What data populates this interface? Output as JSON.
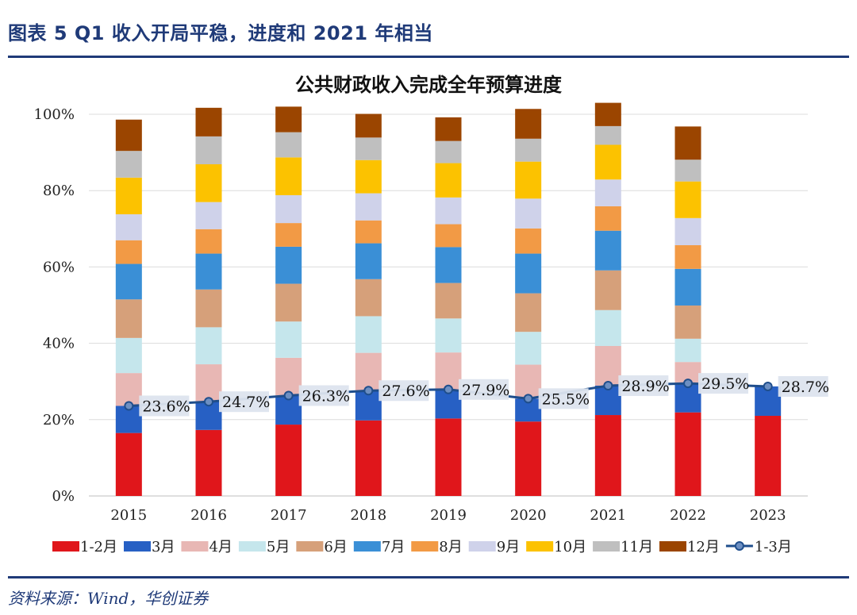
{
  "figure_title": "图表 5   Q1 收入开局平稳，进度和 2021 年相当",
  "source": "资料来源：Wind，华创证券",
  "chart_data": {
    "type": "bar",
    "stacked": true,
    "title": "公共财政收入完成全年预算进度",
    "xlabel": "",
    "ylabel": "",
    "ylim": [
      0,
      100
    ],
    "yticks": [
      "0%",
      "20%",
      "40%",
      "60%",
      "80%",
      "100%"
    ],
    "grid": true,
    "legend_position": "bottom",
    "categories": [
      "2015",
      "2016",
      "2017",
      "2018",
      "2019",
      "2020",
      "2021",
      "2022",
      "2023"
    ],
    "series": [
      {
        "name": "1-2月",
        "color": "#E0161B",
        "values": [
          16.5,
          17.3,
          18.7,
          19.8,
          20.3,
          19.5,
          21.2,
          21.9,
          21.0
        ]
      },
      {
        "name": "3月",
        "color": "#2760C4",
        "values": [
          7.1,
          7.4,
          7.6,
          7.8,
          7.6,
          6.0,
          7.7,
          7.6,
          7.7
        ]
      },
      {
        "name": "4月",
        "color": "#E8B7B4",
        "values": [
          8.6,
          9.8,
          9.9,
          9.9,
          9.7,
          8.9,
          10.4,
          5.6,
          null
        ]
      },
      {
        "name": "5月",
        "color": "#C5E6EC",
        "values": [
          9.2,
          9.7,
          9.5,
          9.6,
          8.9,
          8.6,
          9.4,
          6.1,
          null
        ]
      },
      {
        "name": "6月",
        "color": "#D6A07A",
        "values": [
          10.1,
          9.9,
          9.9,
          9.7,
          9.3,
          10.1,
          10.4,
          8.7,
          null
        ]
      },
      {
        "name": "7月",
        "color": "#3A8FD6",
        "values": [
          9.3,
          9.4,
          9.7,
          9.4,
          9.4,
          10.4,
          10.4,
          9.6,
          null
        ]
      },
      {
        "name": "8月",
        "color": "#F29A45",
        "values": [
          6.2,
          6.4,
          6.2,
          6.0,
          6.0,
          6.6,
          6.4,
          6.2,
          null
        ]
      },
      {
        "name": "9月",
        "color": "#CFD2EA",
        "values": [
          6.8,
          7.1,
          7.3,
          7.1,
          7.0,
          7.8,
          7.0,
          7.1,
          null
        ]
      },
      {
        "name": "10月",
        "color": "#FCC200",
        "values": [
          9.6,
          9.9,
          9.9,
          8.7,
          9.0,
          9.7,
          9.1,
          9.6,
          null
        ]
      },
      {
        "name": "11月",
        "color": "#BFBFBF",
        "values": [
          7.0,
          7.3,
          6.6,
          5.9,
          5.8,
          6.0,
          4.9,
          5.7,
          null
        ]
      },
      {
        "name": "12月",
        "color": "#9B4500",
        "values": [
          8.2,
          7.5,
          6.7,
          6.2,
          6.2,
          7.8,
          6.1,
          8.7,
          null
        ]
      }
    ],
    "line_series": {
      "name": "1-3月",
      "color": "#1F4E8C",
      "values": [
        23.6,
        24.7,
        26.3,
        27.6,
        27.9,
        25.5,
        28.9,
        29.5,
        28.7
      ],
      "labels": [
        "23.6%",
        "24.7%",
        "26.3%",
        "27.6%",
        "27.9%",
        "25.5%",
        "28.9%",
        "29.5%",
        "28.7%"
      ]
    }
  }
}
